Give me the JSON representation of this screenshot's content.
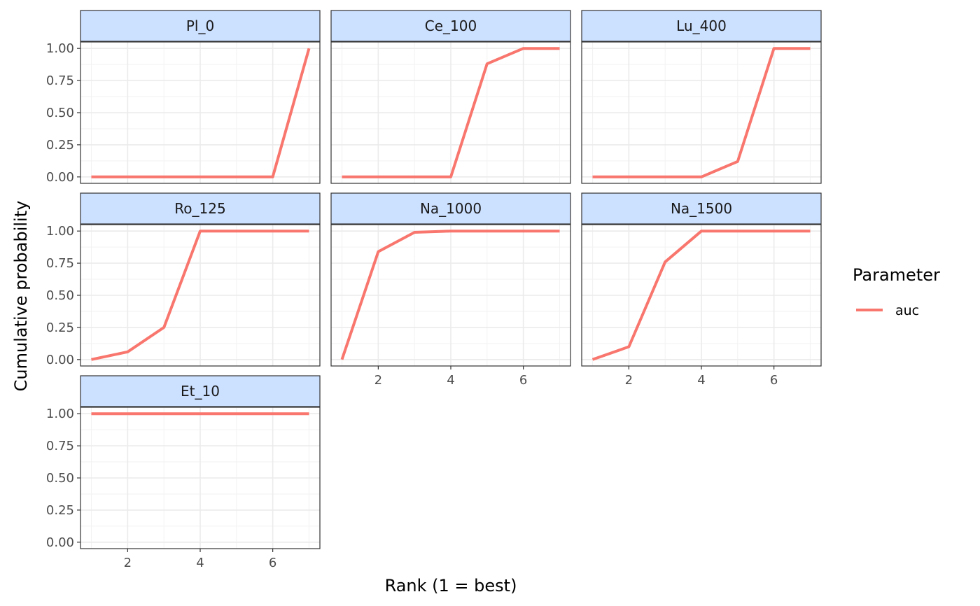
{
  "chart_data": {
    "type": "line",
    "xlabel": "Rank (1 = best)",
    "ylabel": "Cumulative probability",
    "x": [
      1,
      2,
      3,
      4,
      5,
      6,
      7
    ],
    "xlim": [
      0.7,
      7.3
    ],
    "ylim": [
      -0.05,
      1.05
    ],
    "x_ticks": [
      "2",
      "4",
      "6"
    ],
    "x_tick_values": [
      2,
      4,
      6
    ],
    "y_ticks": [
      "0.00",
      "0.25",
      "0.50",
      "0.75",
      "1.00"
    ],
    "y_tick_values": [
      0,
      0.25,
      0.5,
      0.75,
      1.0
    ],
    "grid": true,
    "series_color": "#F8766D",
    "strip_fill": "#CCE0FF",
    "legend": {
      "title": "Parameter",
      "position": "right",
      "entries": [
        {
          "label": "auc",
          "color": "#F8766D"
        }
      ]
    },
    "facets": [
      {
        "label": "Pl_0",
        "series": [
          {
            "name": "auc",
            "values": [
              0,
              0,
              0,
              0,
              0,
              0,
              1.0
            ]
          }
        ]
      },
      {
        "label": "Ce_100",
        "series": [
          {
            "name": "auc",
            "values": [
              0,
              0,
              0,
              0,
              0.88,
              1.0,
              1.0
            ]
          }
        ]
      },
      {
        "label": "Lu_400",
        "series": [
          {
            "name": "auc",
            "values": [
              0,
              0,
              0,
              0,
              0.12,
              1.0,
              1.0
            ]
          }
        ]
      },
      {
        "label": "Ro_125",
        "series": [
          {
            "name": "auc",
            "values": [
              0,
              0.06,
              0.25,
              1.0,
              1.0,
              1.0,
              1.0
            ]
          }
        ]
      },
      {
        "label": "Na_1000",
        "series": [
          {
            "name": "auc",
            "values": [
              0,
              0.84,
              0.99,
              1.0,
              1.0,
              1.0,
              1.0
            ]
          }
        ]
      },
      {
        "label": "Na_1500",
        "series": [
          {
            "name": "auc",
            "values": [
              0,
              0.1,
              0.76,
              1.0,
              1.0,
              1.0,
              1.0
            ]
          }
        ]
      },
      {
        "label": "Et_10",
        "series": [
          {
            "name": "auc",
            "values": [
              1.0,
              1.0,
              1.0,
              1.0,
              1.0,
              1.0,
              1.0
            ]
          }
        ]
      }
    ]
  }
}
